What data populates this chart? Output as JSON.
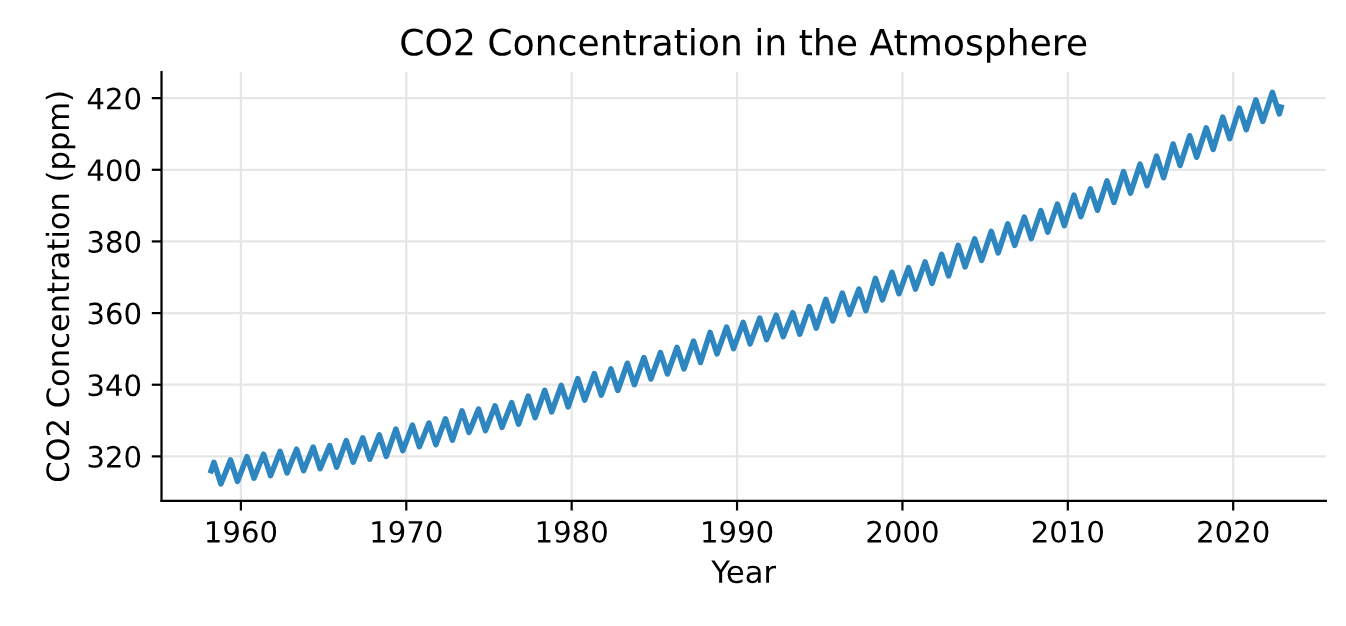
{
  "chart_data": {
    "type": "line",
    "title": "CO2 Concentration in the Atmosphere",
    "xlabel": "Year",
    "ylabel": "CO2 Concentration (ppm)",
    "xlim": [
      1955.2,
      2025.6
    ],
    "ylim": [
      307.6,
      427.3
    ],
    "xticks": [
      1960,
      1970,
      1980,
      1990,
      2000,
      2010,
      2020
    ],
    "yticks": [
      320,
      340,
      360,
      380,
      400,
      420
    ],
    "grid": true,
    "legend": false,
    "series": [
      {
        "color": "#2e86c1",
        "x": [
          1958.2,
          1958.37,
          1958.79,
          1959.37,
          1959.79,
          1960.37,
          1960.79,
          1961.37,
          1961.79,
          1962.37,
          1962.79,
          1963.37,
          1963.79,
          1964.37,
          1964.79,
          1965.37,
          1965.79,
          1966.37,
          1966.79,
          1967.37,
          1967.79,
          1968.37,
          1968.79,
          1969.37,
          1969.79,
          1970.37,
          1970.79,
          1971.37,
          1971.79,
          1972.37,
          1972.79,
          1973.37,
          1973.79,
          1974.37,
          1974.79,
          1975.37,
          1975.79,
          1976.37,
          1976.79,
          1977.37,
          1977.79,
          1978.37,
          1978.79,
          1979.37,
          1979.79,
          1980.37,
          1980.79,
          1981.37,
          1981.79,
          1982.37,
          1982.79,
          1983.37,
          1983.79,
          1984.37,
          1984.79,
          1985.37,
          1985.79,
          1986.37,
          1986.79,
          1987.37,
          1987.79,
          1988.37,
          1988.79,
          1989.37,
          1989.79,
          1990.37,
          1990.79,
          1991.37,
          1991.79,
          1992.37,
          1992.79,
          1993.37,
          1993.79,
          1994.37,
          1994.79,
          1995.37,
          1995.79,
          1996.37,
          1996.79,
          1997.37,
          1997.79,
          1998.37,
          1998.79,
          1999.37,
          1999.79,
          2000.37,
          2000.79,
          2001.37,
          2001.79,
          2002.37,
          2002.79,
          2003.37,
          2003.79,
          2004.37,
          2004.79,
          2005.37,
          2005.79,
          2006.37,
          2006.79,
          2007.37,
          2007.79,
          2008.37,
          2008.79,
          2009.37,
          2009.79,
          2010.37,
          2010.79,
          2011.37,
          2011.79,
          2012.37,
          2012.79,
          2013.37,
          2013.79,
          2014.37,
          2014.79,
          2015.37,
          2015.79,
          2016.37,
          2016.79,
          2017.37,
          2017.79,
          2018.37,
          2018.79,
          2019.37,
          2019.79,
          2020.37,
          2020.79,
          2021.37,
          2021.79,
          2022.37,
          2022.79,
          2022.9
        ],
        "values": [
          316,
          318.3,
          312.3,
          319.0,
          313.0,
          319.9,
          313.9,
          320.6,
          314.6,
          321.4,
          315.4,
          322.0,
          316.0,
          322.6,
          316.6,
          323.0,
          317.0,
          324.4,
          318.4,
          325.2,
          319.2,
          326.0,
          320.0,
          327.6,
          321.6,
          328.7,
          322.7,
          329.3,
          323.3,
          330.5,
          324.5,
          332.7,
          326.7,
          333.2,
          327.2,
          334.1,
          328.1,
          335.0,
          329.0,
          336.8,
          330.8,
          338.4,
          332.4,
          339.8,
          333.8,
          341.7,
          335.7,
          343.1,
          337.1,
          344.4,
          338.4,
          346.0,
          340.0,
          347.6,
          341.6,
          349.0,
          343.0,
          350.4,
          344.4,
          352.2,
          346.2,
          354.6,
          348.6,
          356.1,
          350.1,
          357.4,
          351.4,
          358.6,
          352.6,
          359.4,
          353.4,
          360.1,
          354.1,
          361.8,
          355.8,
          363.8,
          357.8,
          365.6,
          359.6,
          366.7,
          360.7,
          369.7,
          363.7,
          371.4,
          365.4,
          372.7,
          366.7,
          374.3,
          368.3,
          376.4,
          370.4,
          378.9,
          372.9,
          380.7,
          374.7,
          382.8,
          376.8,
          384.9,
          378.9,
          386.8,
          380.8,
          388.6,
          382.6,
          390.4,
          384.4,
          392.9,
          386.9,
          394.7,
          388.7,
          396.9,
          390.9,
          399.5,
          393.5,
          401.6,
          395.6,
          403.8,
          397.8,
          407.2,
          401.2,
          409.5,
          403.5,
          411.7,
          405.7,
          414.7,
          408.7,
          417.2,
          411.2,
          419.5,
          413.5,
          421.6,
          415.6,
          417.5
        ]
      }
    ]
  }
}
